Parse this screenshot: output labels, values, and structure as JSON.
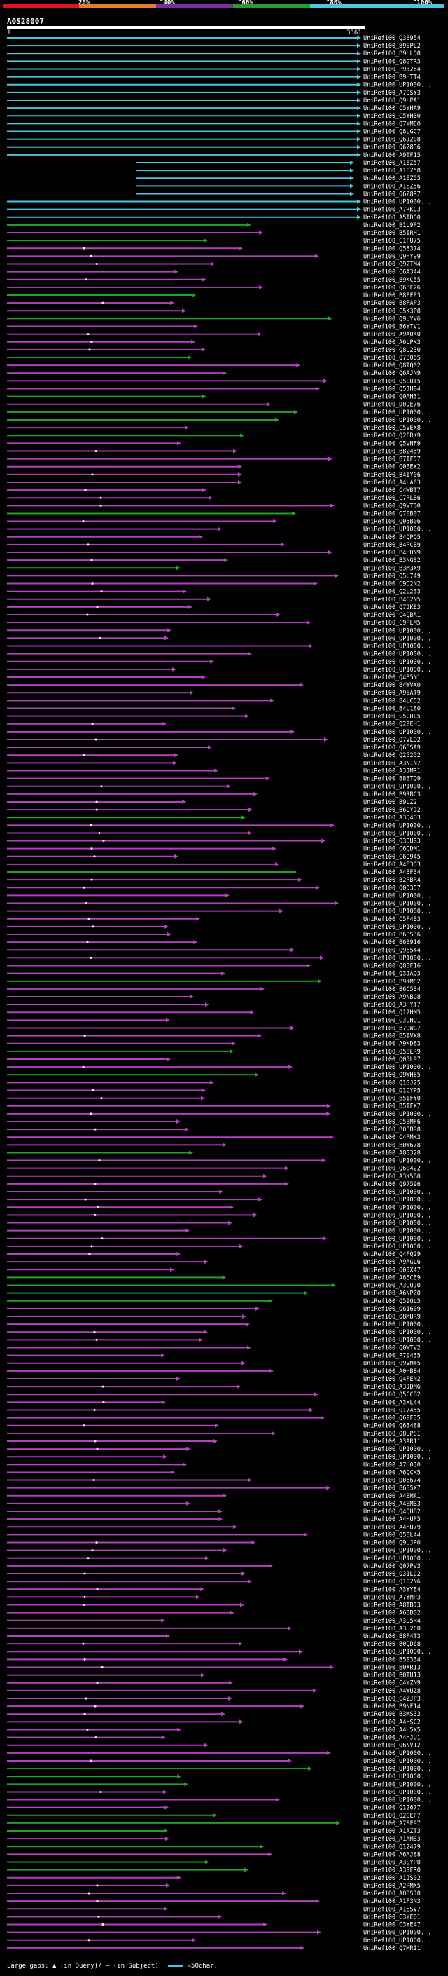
{
  "scale_bar": {
    "ticks": [
      "20%",
      "^40%",
      "^60%",
      "^80%",
      "^100%"
    ],
    "colors": [
      "#e0151a",
      "#ef7b1f",
      "#7b2f9b",
      "#21a12a",
      "#49c6e0"
    ]
  },
  "query": {
    "id": "A0S28007",
    "start": "1",
    "end": "3361"
  },
  "legend": {
    "large_gaps_label": "Large gaps:",
    "query_gap_label": "(in Query)/",
    "subject_gap_label": "(in Subject)",
    "scale_label": "=50char."
  },
  "hit_colors": {
    "c": "#49c6e0",
    "m": "#b540c2",
    "g": "#21a12a"
  },
  "hit_row_colors": "ccccccccccccccccccccccccgmgmmmmmmgmmgmmmmgmmmmgmggmgmmmmmmmmmgmmmmmmgmmmmmmmmmmmmmmmmmmmmmmmmmmmmmmmgmmmmmmgmmmmmmmmmmmmmgmmmmmmmmgmmgmmmmmmmmmgmmmmmmmmmmmmmmmggggmmmmmmmmmmmmmmmmmmmmmmmmmmmmmmmmmmmmmmmmmmmmmmmmmmmmmmmmmmmgggmmmgggmgmggmmmmmmmmmmggggmmmmmmmggmmmmmmmmmmmggmmmmmmmmm",
  "hits": [
    "UniRef100_Q38954",
    "UniRef100_B9SPL2",
    "UniRef100_B9HLQ8",
    "UniRef100_Q8GTR3",
    "UniRef100_P93264",
    "UniRef100_B9HTT4",
    "UniRef100_UP1000...",
    "UniRef100_A7QSY3",
    "UniRef100_Q9LPA1",
    "UniRef100_C5YHA9",
    "UniRef100_C5YHB0",
    "UniRef100_Q7YMEO",
    "UniRef100_Q8LGC7",
    "UniRef100_Q6J208",
    "UniRef100_Q6Z8R6",
    "UniRef100_A9TF15",
    "UniRef100_A1EZ57",
    "UniRef100_A1EZ58",
    "UniRef100_A1EZ55",
    "UniRef100_A1EZ56",
    "UniRef100_Q6Z8R7",
    "UniRef100_UP1000...",
    "UniRef100_A7RKC3",
    "UniRef100_A5IDQ0",
    "UniRef100_B1L9P2",
    "UniRef100_B5IRH1",
    "UniRef100_C1FU75",
    "UniRef100_Q58374",
    "UniRef100_Q9HY99",
    "UniRef100_Q92TM4",
    "UniRef100_C6A344",
    "UniRef100_B9KC55",
    "UniRef100_Q6BF26",
    "UniRef100_B8FFP3",
    "UniRef100_B8FAP3",
    "UniRef100_C5K3P8",
    "UniRef100_Q9UYV6",
    "UniRef100_B6YTV1",
    "UniRef100_A9A0K0",
    "UniRef100_A6LPK3",
    "UniRef100_Q8U230",
    "UniRef100_O7806S",
    "UniRef100_Q8TQ02",
    "UniRef100_Q6AJN9",
    "UniRef100_Q5LUT5",
    "UniRef100_Q5JH04",
    "UniRef100_Q0AH31",
    "UniRef100_D0DE76",
    "UniRef100_UP1000...",
    "UniRef100_UP1000...",
    "UniRef100_C5VEX8",
    "UniRef100_Q2FRK9",
    "UniRef100_Q5VNF9",
    "UniRef100_B82459",
    "UniRef100_B7IF57",
    "UniRef100_Q0BEX2",
    "UniRef100_B4IY06",
    "UniRef100_A4LA63",
    "UniRef100_C4WBT7",
    "UniRef100_C7RLB6",
    "UniRef100_Q9VTG0",
    "UniRef100_Q70B07",
    "UniRef100_Q05B06",
    "UniRef100_UP1000...",
    "UniRef100_B4QPQ5",
    "UniRef100_B4PCB9",
    "UniRef100_B4HDN9",
    "UniRef100_B3NGS2",
    "UniRef100_B3M3X9",
    "UniRef100_Q5L749",
    "UniRef100_C9D2N2",
    "UniRef100_Q2L233",
    "UniRef100_B4G2N5",
    "UniRef100_Q7JKE3",
    "UniRef100_C4QBA1",
    "UniRef100_C9PLM5",
    "UniRef100_UP1000...",
    "UniRef100_UP1000...",
    "UniRef100_UP1000...",
    "UniRef100_UP1000...",
    "UniRef100_UP1000...",
    "UniRef100_UP1000...",
    "UniRef100_Q4B5N1",
    "UniRef100_B4WVX0",
    "UniRef100_A9EAT9",
    "UniRef100_B4LC52",
    "UniRef100_B4L180",
    "UniRef100_C5GDL5",
    "UniRef100_Q29EH1",
    "UniRef100_UP1000...",
    "UniRef100_Q7VLQ2",
    "UniRef100_Q6ESA9",
    "UniRef100_Q25252",
    "UniRef100_A3N1N7",
    "UniRef100_A3JMR1",
    "UniRef100_B8BTQ9",
    "UniRef100_UP1000...",
    "UniRef100_B9RBC3",
    "UniRef100_B9LZ2",
    "UniRef100_B6QYJ2",
    "UniRef100_A3Q4Q3",
    "UniRef100_UP1000...",
    "UniRef100_UP1000...",
    "UniRef100_Q3OUS3",
    "UniRef100_C6QDM1",
    "UniRef100_C6Q945",
    "UniRef100_A4E3Q3",
    "UniRef100_A4BF34",
    "UniRef100_B2RBR4",
    "UniRef100_Q0D357",
    "UniRef100_UP1000...",
    "UniRef100_UP1000...",
    "UniRef100_UP1000...",
    "UniRef100_C5F4B3",
    "UniRef100_UP1000...",
    "UniRef100_B6BS36",
    "UniRef100_B6B916",
    "UniRef100_Q9E544",
    "UniRef100_UP1000...",
    "UniRef100_Q83F16",
    "UniRef100_Q3JAQ3",
    "UniRef100_B9KM82",
    "UniRef100_B6C534",
    "UniRef100_A9NBG8",
    "UniRef100_A3HYT7",
    "UniRef100_Q12HM5",
    "UniRef100_C3UHU1",
    "UniRef100_B7QWG7",
    "UniRef100_B5IVX8",
    "UniRef100_A9KD83",
    "UniRef100_Q58LR9",
    "UniRef100_Q05L97",
    "UniRef100_UP1000...",
    "UniRef100_Q9WH85",
    "UniRef100_Q1GJ25",
    "UniRef100_D1CYP5",
    "UniRef100_B5IFY0",
    "UniRef100_B5IFX7",
    "UniRef100_UP1000...",
    "UniRef100_C5BMF6",
    "UniRef100_B0BBR8",
    "UniRef100_C4PMK3",
    "UniRef100_B0W678",
    "UniRef100_A8G328",
    "UniRef100_UP1000...",
    "UniRef100_Q60422",
    "UniRef100_A3K5B0",
    "UniRef100_Q97596",
    "UniRef100_UP1000...",
    "UniRef100_UP1000...",
    "UniRef100_UP1000...",
    "UniRef100_UP1000...",
    "UniRef100_UP1000...",
    "UniRef100_UP1000...",
    "UniRef100_UP1000...",
    "UniRef100_UP1000...",
    "UniRef100_Q4FQ29",
    "UniRef100_A9AGL6",
    "UniRef100_Q03X47",
    "UniRef100_A8ECE9",
    "UniRef100_A3UOJ0",
    "UniRef100_A6NPZ0",
    "UniRef100_Q59OL5",
    "UniRef100_Q61609",
    "UniRef100_Q8MUR9",
    "UniRef100_UP1000...",
    "UniRef100_UP1000...",
    "UniRef100_UP1000...",
    "UniRef100_Q0WTV2",
    "UniRef100_P70455",
    "UniRef100_Q9VM45",
    "UniRef100_A0HBB4",
    "UniRef100_Q4FEN2",
    "UniRef100_A3JDM6",
    "UniRef100_Q5CCB2",
    "UniRef100_A3XL44",
    "UniRef100_Q17455",
    "UniRef100_Q69F35",
    "UniRef100_Q63488",
    "UniRef100_Q8UP8I",
    "UniRef100_A3AR11",
    "UniRef100_UP1000...",
    "UniRef100_UP1000...",
    "UniRef100_A7H0J0",
    "UniRef100_A6QCK5",
    "UniRef100_D06674",
    "UniRef100_B6BSX7",
    "UniRef100_A4EMA1",
    "UniRef100_A4EMB3",
    "UniRef100_Q4QHB2",
    "UniRef100_A4HUP5",
    "UniRef100_A4HU79",
    "UniRef100_Q5BL44",
    "UniRef100_Q9UJP0",
    "UniRef100_UP1000...",
    "UniRef100_UP1000...",
    "UniRef100_Q07PV3",
    "UniRef100_Q31LC2",
    "UniRef100_Q102N6",
    "UniRef100_A3YYE4",
    "UniRef100_A7YMP3",
    "UniRef100_A8TBJ3",
    "UniRef100_A6BBG2",
    "UniRef100_A3U5H4",
    "UniRef100_A3U2C0",
    "UniRef100_B8F4T3",
    "UniRef100_B0QD68",
    "UniRef100_UP1000...",
    "UniRef100_B5S334",
    "UniRef100_B0XR13",
    "UniRef100_B0TU13",
    "UniRef100_C4YZN9",
    "UniRef100_A4WUZ8",
    "UniRef100_C4ZJP3",
    "UniRef100_B9NF14",
    "UniRef100_B3MS33",
    "UniRef100_A4HSC2",
    "UniRef100_A4H5X5",
    "UniRef100_A4HJU1",
    "UniRef100_Q6NV12",
    "UniRef100_UP1000...",
    "UniRef100_UP1000...",
    "UniRef100_UP1000...",
    "UniRef100_UP1000...",
    "UniRef100_UP1000...",
    "UniRef100_UP1000...",
    "UniRef100_UP1000...",
    "UniRef100_Q12677",
    "UniRef100_Q2GEF7",
    "UniRef100_A7SF97",
    "UniRef100_A1AZT3",
    "UniRef100_A1AMS3",
    "UniRef100_Q12479",
    "UniRef100_A6AJ88",
    "UniRef100_A3SYP0",
    "UniRef100_A3SFR0",
    "UniRef100_A1JS02",
    "UniRef100_A2PMX5",
    "UniRef100_A8PSJ0",
    "UniRef100_A1F3N3",
    "UniRef100_A1ESV7",
    "UniRef100_C3YE61",
    "UniRef100_C3YE47",
    "UniRef100_UP1000...",
    "UniRef100_UP1000...",
    "UniRef100_Q7MRI1"
  ]
}
